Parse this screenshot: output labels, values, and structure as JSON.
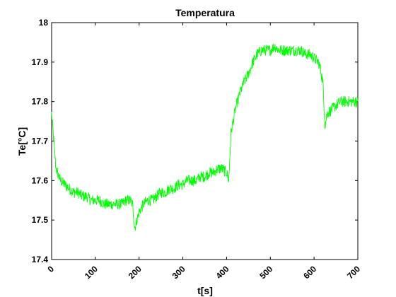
{
  "chart_data": {
    "type": "line",
    "title": "Temperatura",
    "xlabel": "t[s]",
    "ylabel": "Te[°C]",
    "xlim": [
      0,
      700
    ],
    "ylim": [
      17.4,
      18.0
    ],
    "x_ticks": [
      0,
      100,
      200,
      300,
      400,
      500,
      600,
      700
    ],
    "x_tick_labels": [
      "0",
      "100",
      "200",
      "300",
      "400",
      "500",
      "600",
      "700"
    ],
    "y_ticks": [
      17.4,
      17.5,
      17.6,
      17.7,
      17.8,
      17.9,
      18.0
    ],
    "y_tick_labels": [
      "17.4",
      "17.5",
      "17.6",
      "17.7",
      "17.8",
      "17.9",
      "18"
    ],
    "grid": false,
    "series": [
      {
        "color": "#00ff00",
        "x": [
          0,
          5,
          10,
          20,
          30,
          40,
          50,
          60,
          70,
          80,
          90,
          100,
          110,
          120,
          130,
          140,
          150,
          160,
          170,
          180,
          185,
          190,
          195,
          200,
          210,
          220,
          230,
          240,
          250,
          260,
          270,
          280,
          290,
          300,
          310,
          320,
          330,
          340,
          350,
          360,
          370,
          380,
          390,
          400,
          405,
          410,
          420,
          430,
          440,
          450,
          460,
          470,
          480,
          490,
          500,
          510,
          520,
          530,
          540,
          550,
          560,
          570,
          580,
          590,
          600,
          610,
          615,
          620,
          625,
          630,
          640,
          650,
          660,
          670,
          680,
          690,
          700
        ],
        "y": [
          17.77,
          17.7,
          17.63,
          17.6,
          17.59,
          17.58,
          17.57,
          17.57,
          17.56,
          17.56,
          17.55,
          17.55,
          17.55,
          17.54,
          17.54,
          17.54,
          17.54,
          17.54,
          17.55,
          17.55,
          17.54,
          17.48,
          17.5,
          17.52,
          17.54,
          17.55,
          17.55,
          17.56,
          17.57,
          17.57,
          17.58,
          17.58,
          17.59,
          17.59,
          17.6,
          17.6,
          17.6,
          17.61,
          17.61,
          17.62,
          17.62,
          17.63,
          17.63,
          17.62,
          17.6,
          17.72,
          17.78,
          17.82,
          17.85,
          17.87,
          17.9,
          17.92,
          17.93,
          17.93,
          17.93,
          17.94,
          17.93,
          17.93,
          17.93,
          17.93,
          17.93,
          17.93,
          17.92,
          17.92,
          17.91,
          17.9,
          17.88,
          17.85,
          17.74,
          17.77,
          17.78,
          17.79,
          17.8,
          17.8,
          17.8,
          17.8,
          17.8
        ]
      }
    ]
  }
}
